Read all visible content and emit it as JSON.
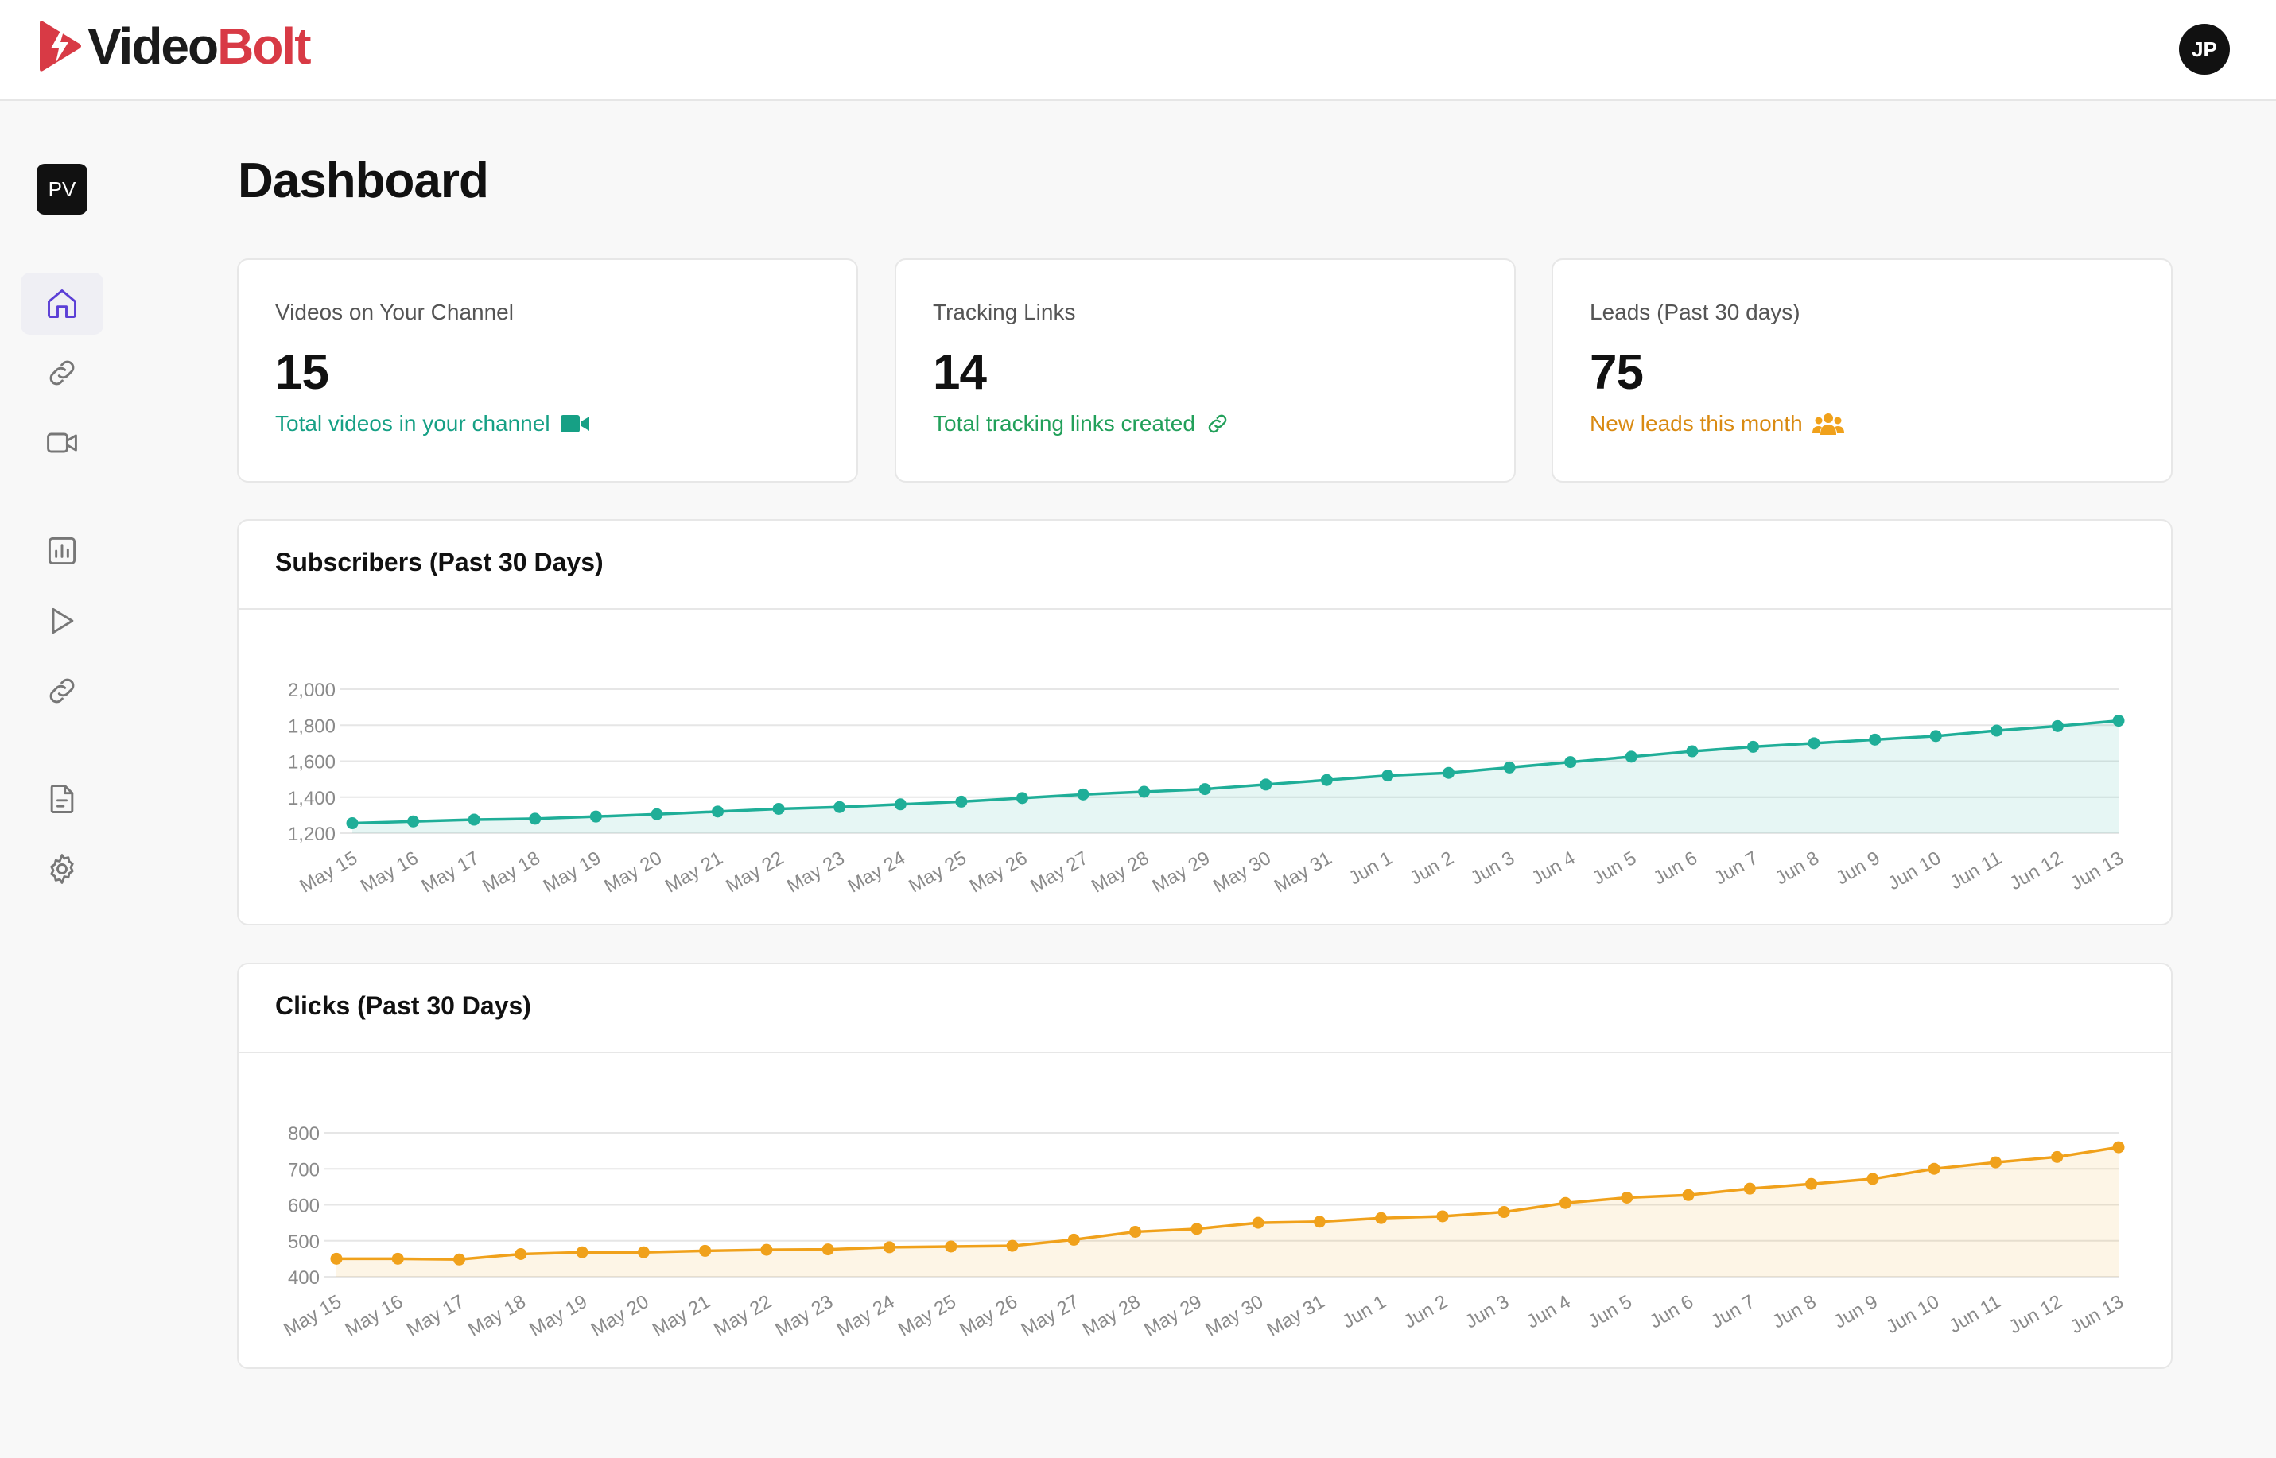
{
  "brand": {
    "name_part1": "Video",
    "name_part2": "Bolt",
    "accent": "#d83a45"
  },
  "user": {
    "initials": "JP"
  },
  "workspace": {
    "initials": "PV"
  },
  "sidebar": {
    "items": [
      {
        "icon": "home-icon",
        "active": true
      },
      {
        "icon": "link-icon"
      },
      {
        "icon": "video-camera-icon"
      },
      {
        "icon": "bar-chart-icon"
      },
      {
        "icon": "play-icon"
      },
      {
        "icon": "link-icon"
      },
      {
        "icon": "document-icon"
      },
      {
        "icon": "gear-icon"
      }
    ]
  },
  "page": {
    "title": "Dashboard"
  },
  "stats": [
    {
      "label": "Videos on Your Channel",
      "value": "15",
      "subtitle": "Total videos in your channel",
      "icon": "video-camera-icon",
      "color": "#16a085"
    },
    {
      "label": "Tracking Links",
      "value": "14",
      "subtitle": "Total tracking links created",
      "icon": "link-icon",
      "color": "#22a05a"
    },
    {
      "label": "Leads (Past 30 days)",
      "value": "75",
      "subtitle": "New leads this month",
      "icon": "users-icon",
      "color": "#d98a12"
    }
  ],
  "chart_data": [
    {
      "type": "area",
      "title": "Subscribers (Past 30 Days)",
      "color": "#1fae98",
      "ylim": [
        1200,
        2000
      ],
      "yticks": [
        1200,
        1400,
        1600,
        1800,
        2000
      ],
      "grid": true,
      "categories": [
        "May 15",
        "May 16",
        "May 17",
        "May 18",
        "May 19",
        "May 20",
        "May 21",
        "May 22",
        "May 23",
        "May 24",
        "May 25",
        "May 26",
        "May 27",
        "May 28",
        "May 29",
        "May 30",
        "May 31",
        "Jun 1",
        "Jun 2",
        "Jun 3",
        "Jun 4",
        "Jun 5",
        "Jun 6",
        "Jun 7",
        "Jun 8",
        "Jun 9",
        "Jun 10",
        "Jun 11",
        "Jun 12",
        "Jun 13"
      ],
      "values": [
        1255,
        1265,
        1275,
        1280,
        1292,
        1305,
        1320,
        1335,
        1345,
        1360,
        1375,
        1395,
        1415,
        1430,
        1445,
        1470,
        1495,
        1520,
        1535,
        1565,
        1595,
        1625,
        1655,
        1680,
        1700,
        1720,
        1740,
        1770,
        1795,
        1825
      ]
    },
    {
      "type": "area",
      "title": "Clicks (Past 30 Days)",
      "color": "#f0a11b",
      "ylim": [
        400,
        800
      ],
      "yticks": [
        400,
        500,
        600,
        700,
        800
      ],
      "grid": true,
      "categories": [
        "May 15",
        "May 16",
        "May 17",
        "May 18",
        "May 19",
        "May 20",
        "May 21",
        "May 22",
        "May 23",
        "May 24",
        "May 25",
        "May 26",
        "May 27",
        "May 28",
        "May 29",
        "May 30",
        "May 31",
        "Jun 1",
        "Jun 2",
        "Jun 3",
        "Jun 4",
        "Jun 5",
        "Jun 6",
        "Jun 7",
        "Jun 8",
        "Jun 9",
        "Jun 10",
        "Jun 11",
        "Jun 12",
        "Jun 13"
      ],
      "values": [
        450,
        450,
        448,
        463,
        468,
        468,
        472,
        475,
        476,
        482,
        484,
        486,
        503,
        525,
        533,
        550,
        553,
        563,
        568,
        580,
        605,
        620,
        627,
        645,
        658,
        672,
        700,
        718,
        733,
        760
      ]
    }
  ]
}
